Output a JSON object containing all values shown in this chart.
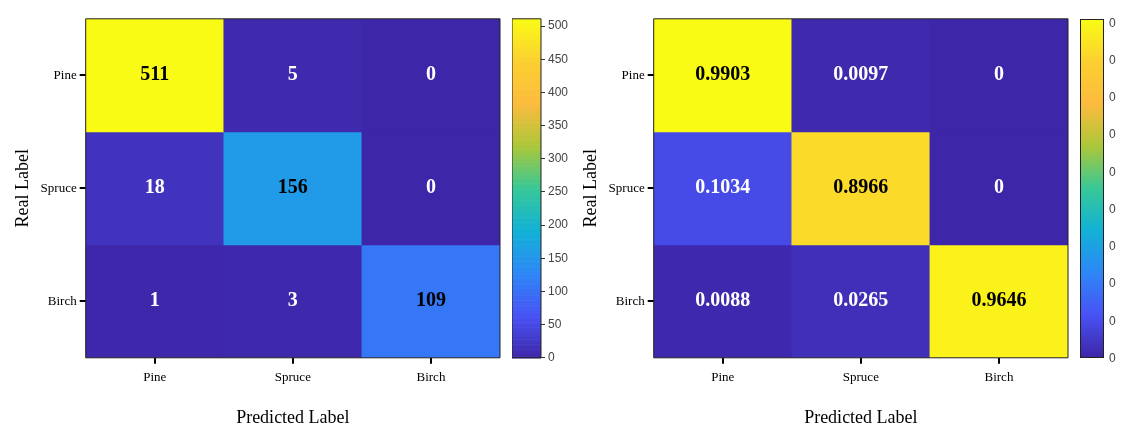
{
  "chart_data": [
    {
      "type": "heatmap",
      "xlabel": "Predicted Label",
      "ylabel": "Real Label",
      "categories": [
        "Pine",
        "Spruce",
        "Birch"
      ],
      "y_categories": [
        "Pine",
        "Spruce",
        "Birch"
      ],
      "cells": [
        [
          511,
          5,
          0
        ],
        [
          18,
          156,
          0
        ],
        [
          1,
          3,
          109
        ]
      ],
      "clim": [
        0,
        511
      ],
      "cticks": [
        0,
        50,
        100,
        150,
        200,
        250,
        300,
        350,
        400,
        450,
        500
      ],
      "data_labels": true
    },
    {
      "type": "heatmap",
      "xlabel": "Predicted Label",
      "ylabel": "Real Label",
      "categories": [
        "Pine",
        "Spruce",
        "Birch"
      ],
      "y_categories": [
        "Pine",
        "Spruce",
        "Birch"
      ],
      "cells": [
        [
          0.9903,
          0.0097,
          0
        ],
        [
          0.1034,
          0.8966,
          0
        ],
        [
          0.0088,
          0.0265,
          0.9646
        ]
      ],
      "annotations": [
        "0",
        "0",
        "0",
        "0",
        "0",
        "0",
        "0",
        "0",
        "0",
        "0"
      ],
      "data_labels": true
    }
  ]
}
